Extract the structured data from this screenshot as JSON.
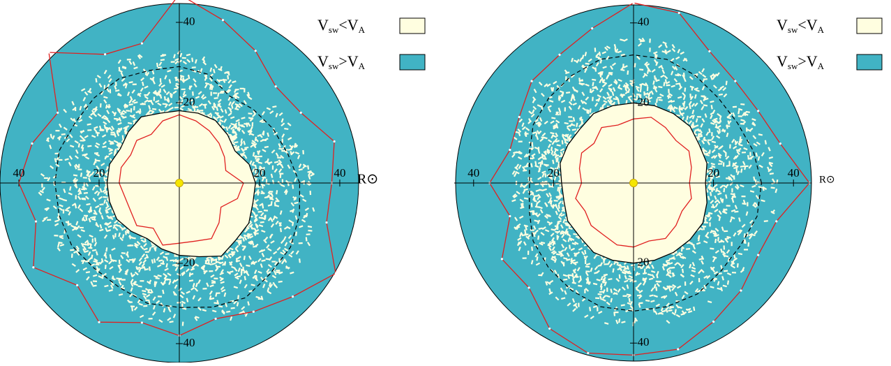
{
  "chart_data": [
    {
      "type": "polar",
      "rlim": [
        0,
        44.7
      ],
      "rticks": [
        20,
        40
      ],
      "r_label": "R⊙",
      "legend": [
        {
          "label": [
            "V",
            "sw",
            "<V",
            "A"
          ],
          "color": "#fffee0"
        },
        {
          "label": [
            "V",
            "sw",
            ">V",
            "A"
          ],
          "color": "#41b3c4"
        }
      ],
      "x": [
        0,
        15,
        30,
        45,
        60,
        75,
        90,
        105,
        120,
        135,
        150,
        165,
        180,
        195,
        210,
        225,
        240,
        255,
        270,
        285,
        300,
        315,
        330,
        345
      ],
      "series": [
        {
          "color": "#e02020",
          "style": "solid",
          "markers": false,
          "values": [
            16,
            12,
            13,
            14,
            15,
            16,
            17,
            16,
            14,
            15,
            14,
            15,
            15,
            14,
            14,
            15,
            13,
            16,
            15,
            15,
            16,
            14,
            12,
            15
          ]
        },
        {
          "color": "#000000",
          "style": "solid",
          "markers": false,
          "values": [
            19,
            18,
            16,
            17,
            18,
            18,
            18,
            18,
            19,
            18,
            17,
            18,
            18,
            18,
            18,
            17,
            16,
            17,
            18,
            19,
            21,
            20,
            20,
            19
          ]
        },
        {
          "color": "#000000",
          "style": "dashed",
          "markers": false,
          "values": [
            30,
            28,
            27,
            26,
            25,
            28,
            29,
            29,
            30,
            30,
            30,
            31,
            31,
            31,
            31,
            30,
            30,
            31,
            31,
            32,
            33,
            32,
            32,
            31
          ]
        },
        {
          "color": "#e02020",
          "style": "solid",
          "markers": true,
          "values": [
            38,
            40,
            35,
            34,
            38,
            42,
            47,
            36,
            37,
            46,
            35,
            38,
            40,
            37,
            42,
            36,
            40,
            36,
            38,
            35,
            37,
            40,
            45,
            38
          ]
        }
      ]
    },
    {
      "type": "polar",
      "rlim": [
        0,
        44.5
      ],
      "rticks": [
        20,
        40
      ],
      "r_label": "R⊙",
      "legend": [
        {
          "label": [
            "V",
            "sw",
            "<V",
            "A"
          ],
          "color": "#fffee0"
        },
        {
          "label": [
            "V",
            "sw",
            ">V",
            "A"
          ],
          "color": "#41b3c4"
        }
      ],
      "x": [
        0,
        15,
        30,
        45,
        60,
        75,
        90,
        105,
        120,
        135,
        150,
        165,
        180,
        195,
        210,
        225,
        240,
        255,
        270,
        285,
        300,
        315,
        330,
        345
      ],
      "series": [
        {
          "color": "#e02020",
          "style": "solid",
          "markers": false,
          "values": [
            14,
            15,
            16,
            15,
            16,
            17,
            16,
            15,
            16,
            14,
            15,
            14,
            13,
            15,
            14,
            15,
            15,
            16,
            16,
            15,
            16,
            15,
            14,
            15
          ]
        },
        {
          "color": "#000000",
          "style": "solid",
          "markers": false,
          "values": [
            18,
            19,
            19,
            20,
            20,
            20,
            20,
            20,
            20,
            19,
            19,
            19,
            18,
            18,
            19,
            19,
            20,
            20,
            20,
            20,
            20,
            20,
            20,
            19
          ]
        },
        {
          "color": "#000000",
          "style": "dashed",
          "markers": false,
          "values": [
            32,
            31,
            30,
            30,
            31,
            32,
            32,
            32,
            31,
            30,
            29,
            27,
            26,
            27,
            29,
            30,
            31,
            32,
            32,
            32,
            32,
            31,
            31,
            32
          ]
        },
        {
          "color": "#e02020",
          "style": "solid",
          "markers": true,
          "values": [
            44,
            38,
            36,
            36,
            38,
            44,
            45,
            40,
            37,
            36,
            33,
            32,
            36,
            32,
            38,
            37,
            42,
            44,
            43,
            43,
            40,
            38,
            36,
            37
          ]
        }
      ]
    }
  ]
}
